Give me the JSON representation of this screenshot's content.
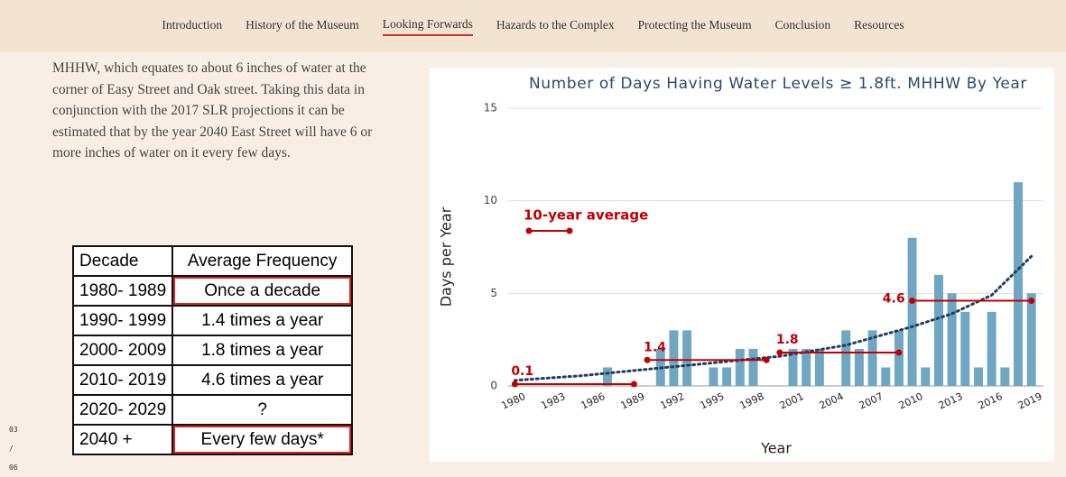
{
  "nav": {
    "items": [
      "Introduction",
      "History of the Museum",
      "Looking Forwards",
      "Hazards to the Complex",
      "Protecting the Museum",
      "Conclusion",
      "Resources"
    ],
    "active": 2
  },
  "article": {
    "paragraph": "MHHW, which equates to about 6 inches of water at the corner of Easy Street and Oak street. Taking this data in conjunction with the 2017 SLR projections it can be estimated that by the year 2040 East Street will have 6 or more inches of water on it every few days."
  },
  "table": {
    "header": [
      "Decade",
      "Average Frequency"
    ],
    "rows": [
      [
        "1980- 1989",
        "Once a decade"
      ],
      [
        "1990- 1999",
        "1.4 times a year"
      ],
      [
        "2000- 2009",
        "1.8 times a year"
      ],
      [
        "2010- 2019",
        "4.6 times a year"
      ],
      [
        "2020- 2029",
        "?"
      ],
      [
        "2040 +",
        "Every few days*"
      ]
    ]
  },
  "pager": {
    "current": "03",
    "separator": "/",
    "total": "06"
  },
  "chart_data": {
    "type": "bar",
    "title": "Number of Days Having Water Levels ≥ 1.8ft. MHHW By Year",
    "x_label": "Year",
    "y_label": "Days per Year",
    "x": [
      1980,
      1981,
      1982,
      1983,
      1984,
      1985,
      1986,
      1987,
      1988,
      1989,
      1990,
      1991,
      1992,
      1993,
      1994,
      1995,
      1996,
      1997,
      1998,
      1999,
      2000,
      2001,
      2002,
      2003,
      2004,
      2005,
      2006,
      2007,
      2008,
      2009,
      2010,
      2011,
      2012,
      2013,
      2014,
      2015,
      2016,
      2017,
      2018,
      2019
    ],
    "values": [
      0,
      0,
      0,
      0,
      0,
      0,
      0,
      1,
      0,
      0,
      0,
      2,
      3,
      3,
      0,
      1,
      1,
      2,
      2,
      0,
      0,
      2,
      2,
      2,
      0,
      3,
      2,
      3,
      1,
      3,
      8,
      1,
      6,
      5,
      4,
      1,
      4,
      1,
      11,
      5
    ],
    "color": "#6fa7c2",
    "xlim": [
      1979.5,
      2019.5
    ],
    "xticks": [
      1980,
      1983,
      1986,
      1989,
      1992,
      1995,
      1998,
      2001,
      2004,
      2007,
      2010,
      2013,
      2016,
      2019
    ],
    "ylim": [
      0,
      15
    ],
    "yticks": [
      0,
      5,
      10,
      15
    ],
    "grid": true,
    "averages_name": "10-year average",
    "averages_color": "#c00000",
    "averages": [
      {
        "value": 0.1,
        "x": [
          1980,
          1989
        ]
      },
      {
        "value": 1.4,
        "x": [
          1990,
          1999
        ]
      },
      {
        "value": 1.8,
        "x": [
          2000,
          2009
        ]
      },
      {
        "value": 4.6,
        "x": [
          2010,
          2019
        ]
      }
    ],
    "trend": {
      "color": "#1f3d63",
      "x": [
        1980,
        1985,
        1990,
        1995,
        2000,
        2005,
        2010,
        2013,
        2016,
        2019
      ],
      "values": [
        0.3,
        0.55,
        0.9,
        1.25,
        1.6,
        2.2,
        3.2,
        3.9,
        4.9,
        7.0
      ]
    }
  }
}
